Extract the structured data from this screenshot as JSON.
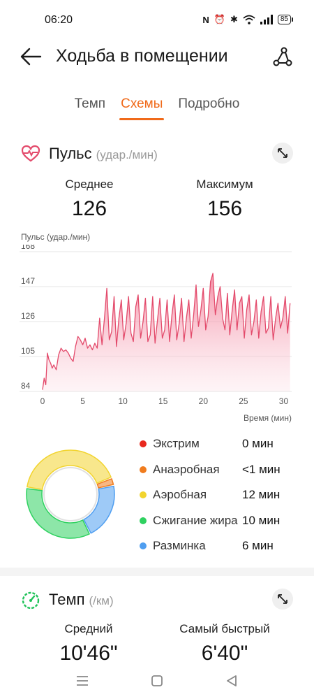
{
  "status": {
    "time": "06:20",
    "battery": "85"
  },
  "header": {
    "title": "Ходьба в помещении"
  },
  "tabs": [
    {
      "label": "Темп"
    },
    {
      "label": "Схемы"
    },
    {
      "label": "Подробно"
    }
  ],
  "pulse": {
    "title": "Пульс",
    "unit": "(удар./мин)",
    "avg_label": "Среднее",
    "avg_value": "126",
    "max_label": "Максимум",
    "max_value": "156"
  },
  "chart_data": {
    "type": "area",
    "ylabel": "Пульс (удар./мин)",
    "xlabel": "Время (мин)",
    "ylim": [
      84,
      168
    ],
    "xlim": [
      0,
      31
    ],
    "y_ticks": [
      "168",
      "147",
      "126",
      "105",
      "84"
    ],
    "x_ticks": [
      "0",
      "5",
      "10",
      "15",
      "20",
      "25",
      "30"
    ],
    "grid": true,
    "series": [
      {
        "color": "#e34a6b",
        "x": [
          0,
          0.2,
          0.4,
          0.6,
          0.8,
          1.0,
          1.2,
          1.4,
          1.7,
          2.0,
          2.3,
          2.6,
          2.9,
          3.2,
          3.5,
          3.8,
          4.1,
          4.4,
          4.7,
          5.0,
          5.3,
          5.6,
          5.9,
          6.2,
          6.5,
          6.8,
          7.1,
          7.4,
          7.7,
          8.0,
          8.3,
          8.6,
          8.9,
          9.2,
          9.5,
          9.8,
          10.1,
          10.4,
          10.7,
          11.0,
          11.3,
          11.6,
          11.9,
          12.2,
          12.5,
          12.8,
          13.1,
          13.4,
          13.7,
          14.0,
          14.3,
          14.6,
          14.9,
          15.2,
          15.5,
          15.8,
          16.1,
          16.4,
          16.7,
          17.0,
          17.3,
          17.6,
          17.9,
          18.2,
          18.5,
          18.8,
          19.1,
          19.4,
          19.7,
          20.0,
          20.3,
          20.6,
          20.9,
          21.2,
          21.5,
          21.8,
          22.1,
          22.4,
          22.7,
          23.0,
          23.3,
          23.6,
          23.9,
          24.2,
          24.5,
          24.8,
          25.1,
          25.4,
          25.7,
          26.0,
          26.3,
          26.6,
          26.9,
          27.2,
          27.5,
          27.8,
          28.1,
          28.4,
          28.7,
          29.0,
          29.3,
          29.6,
          29.9,
          30.2,
          30.5,
          30.8
        ],
        "y": [
          85,
          92,
          88,
          107,
          103,
          101,
          98,
          100,
          97,
          106,
          110,
          108,
          109,
          107,
          104,
          102,
          111,
          117,
          115,
          112,
          116,
          110,
          112,
          109,
          113,
          110,
          128,
          112,
          128,
          146,
          115,
          120,
          141,
          111,
          128,
          139,
          115,
          125,
          141,
          119,
          114,
          135,
          142,
          116,
          126,
          140,
          114,
          118,
          141,
          113,
          127,
          140,
          116,
          121,
          139,
          114,
          130,
          142,
          115,
          125,
          140,
          114,
          128,
          139,
          116,
          130,
          148,
          123,
          133,
          146,
          121,
          129,
          150,
          155,
          130,
          141,
          147,
          128,
          121,
          143,
          118,
          133,
          145,
          121,
          137,
          141,
          116,
          133,
          142,
          118,
          126,
          139,
          116,
          132,
          141,
          119,
          122,
          141,
          115,
          128,
          137,
          122,
          128,
          141,
          119,
          137
        ]
      }
    ]
  },
  "zones": {
    "items": [
      {
        "name": "Экстрим",
        "value": "0 мин",
        "minutes": 0,
        "color": "#e8291e"
      },
      {
        "name": "Анаэробная",
        "value": "<1 мин",
        "minutes": 0.8,
        "color": "#f07c1e"
      },
      {
        "name": "Аэробная",
        "value": "12 мин",
        "minutes": 12,
        "color": "#f2d42e"
      },
      {
        "name": "Сжигание жира",
        "value": "10 мин",
        "minutes": 10,
        "color": "#2fd160"
      },
      {
        "name": "Разминка",
        "value": "6 мин",
        "minutes": 6,
        "color": "#4f9ef0"
      }
    ]
  },
  "pace": {
    "title": "Темп",
    "unit": "(/км)",
    "avg_label": "Средний",
    "avg_value": "10'46\"",
    "best_label": "Самый быстрый",
    "best_value": "6'40\""
  }
}
